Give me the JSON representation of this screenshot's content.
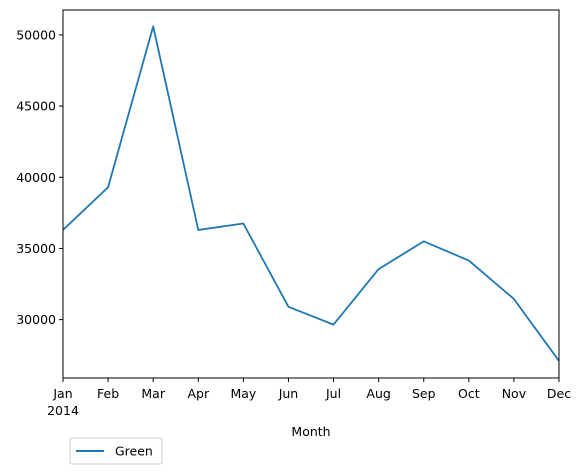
{
  "chart_data": {
    "type": "line",
    "title": "",
    "xlabel": "Month",
    "ylabel": "",
    "x": [
      "Jan",
      "Feb",
      "Mar",
      "Apr",
      "May",
      "Jun",
      "Jul",
      "Aug",
      "Sep",
      "Oct",
      "Nov",
      "Dec"
    ],
    "x_year_label": "2014",
    "series": [
      {
        "name": "Green",
        "color": "#1f77b4",
        "values": [
          36300,
          39300,
          50600,
          36300,
          36750,
          30900,
          29650,
          33550,
          35500,
          34150,
          31450,
          27100
        ]
      }
    ],
    "ylim": [
      25900,
      51750
    ],
    "yticks": [
      30000,
      35000,
      40000,
      45000,
      50000
    ],
    "ytick_labels": [
      "30000",
      "35000",
      "40000",
      "45000",
      "50000"
    ],
    "grid": false,
    "legend_position": "lower-left, below axes"
  }
}
